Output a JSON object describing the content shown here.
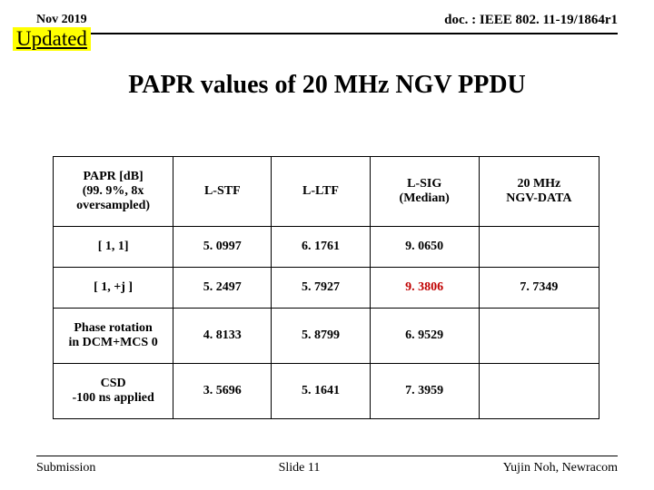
{
  "header": {
    "date": "Nov 2019",
    "doc": "doc. : IEEE 802. 11-19/1864r1",
    "updated_label": "Updated"
  },
  "title": "PAPR values of 20 MHz NGV PPDU",
  "table": {
    "col_widths_pct": [
      22,
      18,
      18,
      20,
      22
    ],
    "header": [
      "PAPR [dB]\n(99. 9%, 8x\noversampled)",
      "L-STF",
      "L-LTF",
      "L-SIG\n(Median)",
      "20 MHz\nNGV-DATA"
    ],
    "rows": [
      {
        "cells": [
          "[ 1, 1]",
          "5. 0997",
          "6. 1761",
          "9. 0650",
          ""
        ],
        "highlight": []
      },
      {
        "cells": [
          "[ 1, +j ]",
          "5. 2497",
          "5. 7927",
          "9. 3806",
          "7. 7349"
        ],
        "highlight": [
          3
        ]
      },
      {
        "cells": [
          "Phase rotation\nin DCM+MCS 0",
          "4. 8133",
          "5. 8799",
          "6. 9529",
          ""
        ],
        "highlight": []
      },
      {
        "cells": [
          "CSD\n-100 ns applied",
          "3. 5696",
          "5. 1641",
          "7. 3959",
          ""
        ],
        "highlight": []
      }
    ],
    "cell_font_size": 14,
    "border_color": "#000000"
  },
  "footer": {
    "left": "Submission",
    "center": "Slide 11",
    "right": "Yujin Noh, Newracom"
  }
}
